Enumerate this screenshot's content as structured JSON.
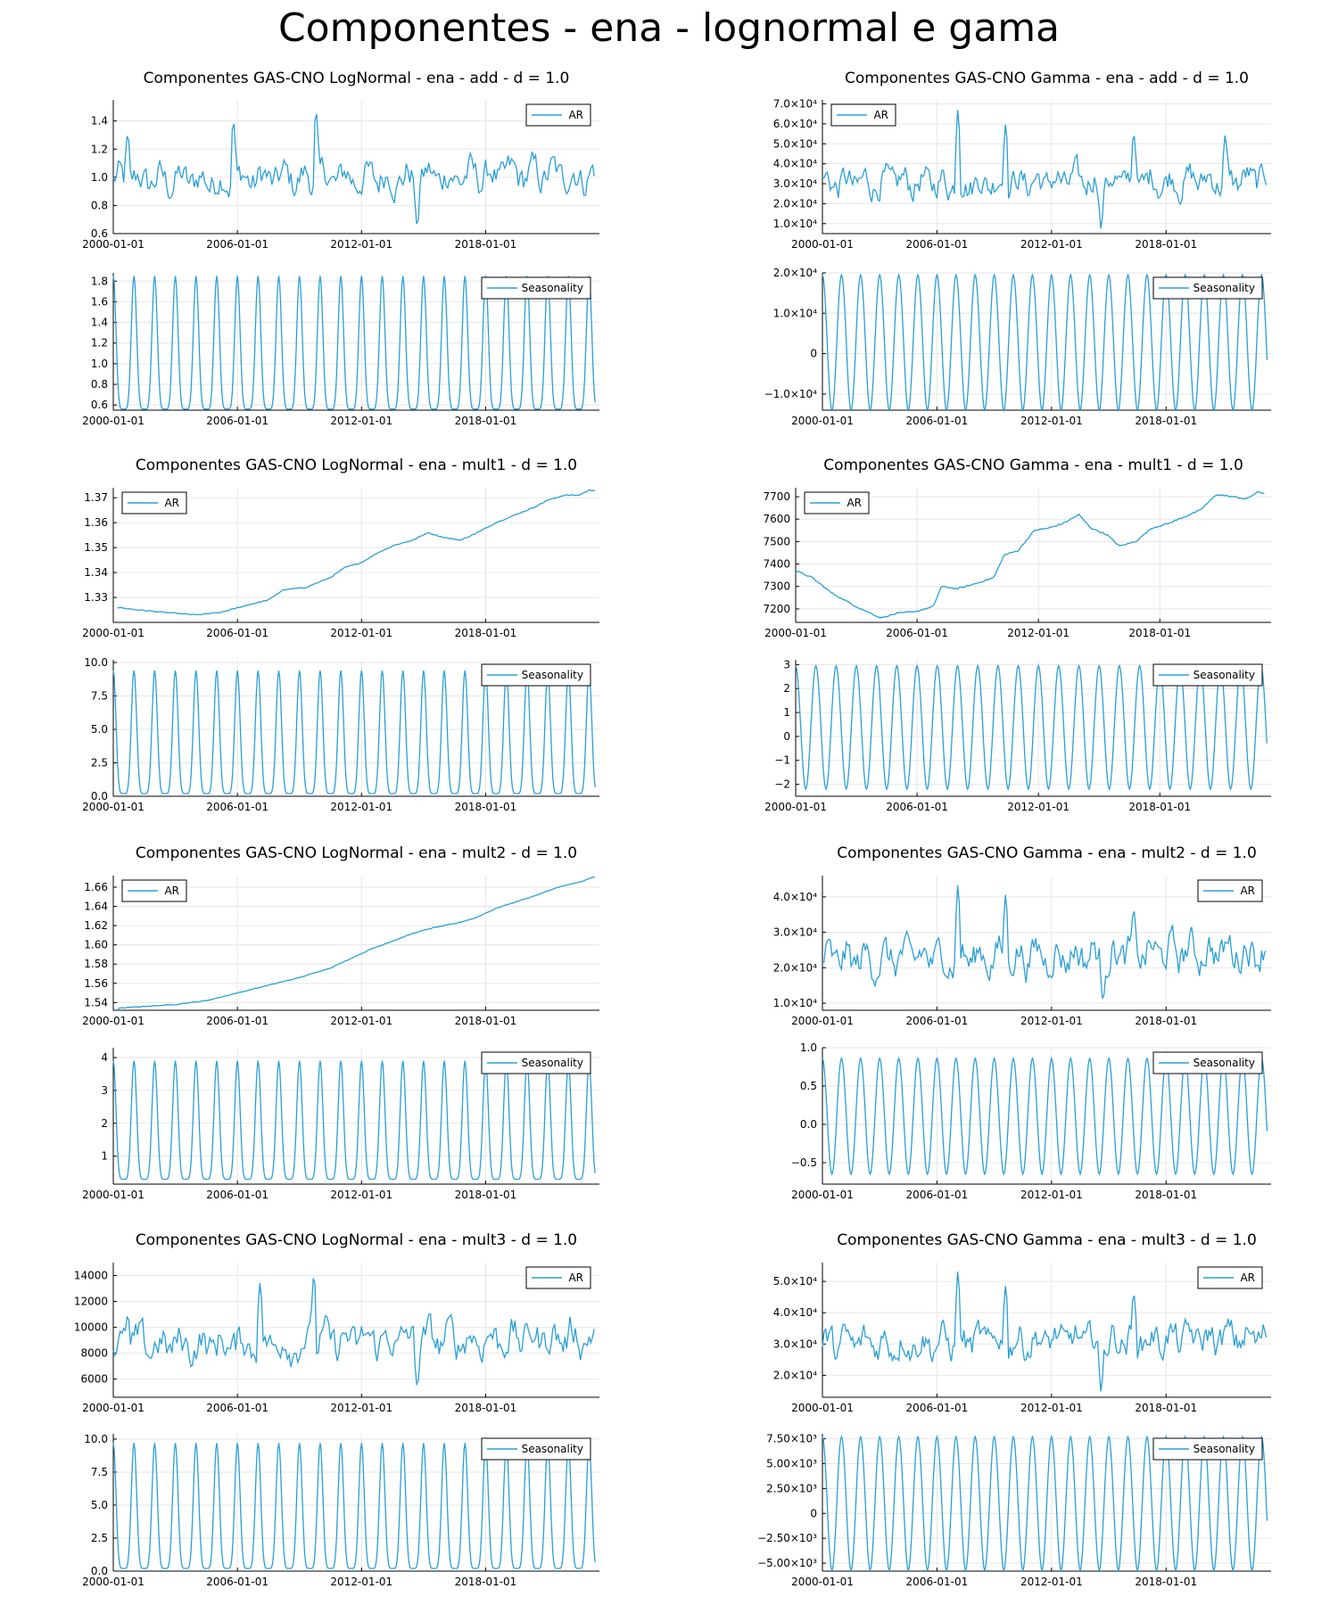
{
  "figure": {
    "title": "Componentes - ena - lognormal e gama",
    "line_color": "#2a9fd6"
  },
  "chart_data": [
    {
      "type": "line",
      "title": "Componentes GAS-CNO LogNormal - ena - add - d = 1.0",
      "legend": "AR",
      "legend_position": "top-right",
      "grid": true,
      "x_ticks": [
        "2000-01-01",
        "2006-01-01",
        "2012-01-01",
        "2018-01-01"
      ],
      "y_ticks": [
        "0.6",
        "0.8",
        "1.0",
        "1.2",
        "1.4"
      ],
      "y_tick_values": [
        0.6,
        0.8,
        1.0,
        1.2,
        1.4
      ],
      "xlim": [
        2000.0,
        2023.5
      ],
      "ylim": [
        0.6,
        1.55
      ],
      "pattern": "noisy",
      "level": [
        0.97,
        1.02
      ],
      "noise": 0.13,
      "spikes": [
        [
          2005.8,
          1.45
        ],
        [
          2009.8,
          1.53
        ],
        [
          2014.7,
          0.61
        ],
        [
          2000.7,
          1.35
        ]
      ]
    },
    {
      "type": "line",
      "title": "Componentes GAS-CNO Gamma - ena - add - d = 1.0",
      "legend": "AR",
      "legend_position": "top-left",
      "grid": true,
      "x_ticks": [
        "2000-01-01",
        "2006-01-01",
        "2012-01-01",
        "2018-01-01"
      ],
      "y_ticks": [
        "1.0×10⁴",
        "2.0×10⁴",
        "3.0×10⁴",
        "4.0×10⁴",
        "5.0×10⁴",
        "6.0×10⁴",
        "7.0×10⁴"
      ],
      "y_tick_values": [
        10000,
        20000,
        30000,
        40000,
        50000,
        60000,
        70000
      ],
      "xlim": [
        2000.0,
        2023.5
      ],
      "ylim": [
        5000,
        72000
      ],
      "pattern": "noisy",
      "level": [
        30000,
        32000
      ],
      "noise": 8000,
      "spikes": [
        [
          2007.1,
          70000
        ],
        [
          2009.6,
          62000
        ],
        [
          2014.6,
          5500
        ],
        [
          2016.3,
          58000
        ],
        [
          2021.1,
          56000
        ]
      ]
    },
    {
      "type": "line",
      "title": "",
      "legend": "Seasonality",
      "legend_position": "top-right",
      "grid": true,
      "x_ticks": [
        "2000-01-01",
        "2006-01-01",
        "2012-01-01",
        "2018-01-01"
      ],
      "y_ticks": [
        "0.6",
        "0.8",
        "1.0",
        "1.2",
        "1.4",
        "1.6",
        "1.8"
      ],
      "y_tick_values": [
        0.6,
        0.8,
        1.0,
        1.2,
        1.4,
        1.6,
        1.8
      ],
      "xlim": [
        2000.0,
        2023.5
      ],
      "ylim": [
        0.55,
        1.88
      ],
      "pattern": "seasonal",
      "season_min": 0.56,
      "season_max": 1.85,
      "sharp": "top"
    },
    {
      "type": "line",
      "title": "",
      "legend": "Seasonality",
      "legend_position": "top-right",
      "grid": true,
      "x_ticks": [
        "2000-01-01",
        "2006-01-01",
        "2012-01-01",
        "2018-01-01"
      ],
      "y_ticks": [
        "−1.0×10⁴",
        "0",
        "1.0×10⁴",
        "2.0×10⁴"
      ],
      "y_tick_values": [
        -10000,
        0,
        10000,
        20000
      ],
      "xlim": [
        2000.0,
        2023.5
      ],
      "ylim": [
        -14000,
        20000
      ],
      "pattern": "seasonal",
      "season_min": -14000,
      "season_max": 19500,
      "sharp": "none"
    },
    {
      "type": "line",
      "title": "Componentes GAS-CNO LogNormal - ena - mult1 - d = 1.0",
      "legend": "AR",
      "legend_position": "top-left",
      "grid": true,
      "x_ticks": [
        "2000-01-01",
        "2006-01-01",
        "2012-01-01",
        "2018-01-01"
      ],
      "y_ticks": [
        "1.33",
        "1.34",
        "1.35",
        "1.36",
        "1.37"
      ],
      "y_tick_values": [
        1.33,
        1.34,
        1.35,
        1.36,
        1.37
      ],
      "xlim": [
        2000.0,
        2023.5
      ],
      "ylim": [
        1.32,
        1.374
      ],
      "pattern": "trend",
      "points": [
        [
          2000.2,
          1.326
        ],
        [
          2001.2,
          1.325
        ],
        [
          2002.5,
          1.324
        ],
        [
          2004.0,
          1.323
        ],
        [
          2005.2,
          1.324
        ],
        [
          2006.5,
          1.327
        ],
        [
          2007.5,
          1.329
        ],
        [
          2008.2,
          1.333
        ],
        [
          2009.3,
          1.334
        ],
        [
          2010.5,
          1.338
        ],
        [
          2011.2,
          1.342
        ],
        [
          2012.0,
          1.344
        ],
        [
          2012.8,
          1.348
        ],
        [
          2013.6,
          1.351
        ],
        [
          2014.5,
          1.353
        ],
        [
          2015.2,
          1.356
        ],
        [
          2016.0,
          1.354
        ],
        [
          2016.8,
          1.353
        ],
        [
          2017.6,
          1.356
        ],
        [
          2018.5,
          1.36
        ],
        [
          2019.4,
          1.363
        ],
        [
          2020.3,
          1.366
        ],
        [
          2021.0,
          1.369
        ],
        [
          2021.8,
          1.371
        ],
        [
          2022.5,
          1.371
        ],
        [
          2023.0,
          1.373
        ],
        [
          2023.3,
          1.373
        ]
      ],
      "noise": 0.0004
    },
    {
      "type": "line",
      "title": "Componentes GAS-CNO Gamma - ena - mult1 - d = 1.0",
      "legend": "AR",
      "legend_position": "top-left",
      "grid": true,
      "x_ticks": [
        "2000-01-01",
        "2006-01-01",
        "2012-01-01",
        "2018-01-01"
      ],
      "y_ticks": [
        "7200",
        "7300",
        "7400",
        "7500",
        "7600",
        "7700"
      ],
      "y_tick_values": [
        7200,
        7300,
        7400,
        7500,
        7600,
        7700
      ],
      "xlim": [
        2000.0,
        2023.5
      ],
      "ylim": [
        7140,
        7740
      ],
      "pattern": "trend",
      "points": [
        [
          2000.0,
          7370
        ],
        [
          2000.8,
          7340
        ],
        [
          2001.8,
          7270
        ],
        [
          2003.0,
          7210
        ],
        [
          2004.2,
          7160
        ],
        [
          2005.0,
          7180
        ],
        [
          2006.0,
          7190
        ],
        [
          2006.8,
          7210
        ],
        [
          2007.2,
          7300
        ],
        [
          2008.0,
          7290
        ],
        [
          2008.8,
          7310
        ],
        [
          2009.8,
          7340
        ],
        [
          2010.3,
          7440
        ],
        [
          2011.0,
          7460
        ],
        [
          2011.8,
          7550
        ],
        [
          2012.5,
          7560
        ],
        [
          2013.2,
          7580
        ],
        [
          2014.0,
          7620
        ],
        [
          2014.6,
          7560
        ],
        [
          2015.4,
          7530
        ],
        [
          2016.0,
          7480
        ],
        [
          2016.8,
          7500
        ],
        [
          2017.6,
          7560
        ],
        [
          2018.4,
          7580
        ],
        [
          2019.2,
          7610
        ],
        [
          2020.0,
          7640
        ],
        [
          2020.8,
          7710
        ],
        [
          2021.6,
          7700
        ],
        [
          2022.3,
          7690
        ],
        [
          2022.8,
          7720
        ],
        [
          2023.2,
          7715
        ]
      ],
      "noise": 6
    },
    {
      "type": "line",
      "title": "",
      "legend": "Seasonality",
      "legend_position": "top-right",
      "grid": true,
      "x_ticks": [
        "2000-01-01",
        "2006-01-01",
        "2012-01-01",
        "2018-01-01"
      ],
      "y_ticks": [
        "0.0",
        "2.5",
        "5.0",
        "7.5",
        "10.0"
      ],
      "y_tick_values": [
        0,
        2.5,
        5,
        7.5,
        10
      ],
      "xlim": [
        2000.0,
        2023.5
      ],
      "ylim": [
        0,
        10.2
      ],
      "pattern": "seasonal",
      "season_min": 0.2,
      "season_max": 9.4,
      "sharp": "top"
    },
    {
      "type": "line",
      "title": "",
      "legend": "Seasonality",
      "legend_position": "top-right",
      "grid": true,
      "x_ticks": [
        "2000-01-01",
        "2006-01-01",
        "2012-01-01",
        "2018-01-01"
      ],
      "y_ticks": [
        "−2",
        "−1",
        "0",
        "1",
        "2",
        "3"
      ],
      "y_tick_values": [
        -2,
        -1,
        0,
        1,
        2,
        3
      ],
      "xlim": [
        2000.0,
        2023.5
      ],
      "ylim": [
        -2.5,
        3.2
      ],
      "pattern": "seasonal",
      "season_min": -2.2,
      "season_max": 2.95,
      "sharp": "none"
    },
    {
      "type": "line",
      "title": "Componentes GAS-CNO LogNormal - ena - mult2 - d = 1.0",
      "legend": "AR",
      "legend_position": "top-left",
      "grid": true,
      "x_ticks": [
        "2000-01-01",
        "2006-01-01",
        "2012-01-01",
        "2018-01-01"
      ],
      "y_ticks": [
        "1.54",
        "1.56",
        "1.58",
        "1.60",
        "1.62",
        "1.64",
        "1.66"
      ],
      "y_tick_values": [
        1.54,
        1.56,
        1.58,
        1.6,
        1.62,
        1.64,
        1.66
      ],
      "xlim": [
        2000.0,
        2023.5
      ],
      "ylim": [
        1.532,
        1.672
      ],
      "pattern": "trend",
      "points": [
        [
          2000.2,
          1.534
        ],
        [
          2001.5,
          1.536
        ],
        [
          2003.0,
          1.538
        ],
        [
          2004.5,
          1.542
        ],
        [
          2006.0,
          1.55
        ],
        [
          2007.5,
          1.558
        ],
        [
          2009.0,
          1.566
        ],
        [
          2010.5,
          1.576
        ],
        [
          2011.5,
          1.586
        ],
        [
          2012.5,
          1.596
        ],
        [
          2013.5,
          1.604
        ],
        [
          2014.5,
          1.612
        ],
        [
          2015.5,
          1.618
        ],
        [
          2016.5,
          1.622
        ],
        [
          2017.5,
          1.628
        ],
        [
          2018.5,
          1.638
        ],
        [
          2019.5,
          1.645
        ],
        [
          2020.5,
          1.652
        ],
        [
          2021.5,
          1.66
        ],
        [
          2022.5,
          1.665
        ],
        [
          2023.3,
          1.671
        ]
      ],
      "noise": 0.0007
    },
    {
      "type": "line",
      "title": "Componentes GAS-CNO Gamma - ena - mult2 - d = 1.0",
      "legend": "AR",
      "legend_position": "top-right",
      "grid": true,
      "x_ticks": [
        "2000-01-01",
        "2006-01-01",
        "2012-01-01",
        "2018-01-01"
      ],
      "y_ticks": [
        "1.0×10⁴",
        "2.0×10⁴",
        "3.0×10⁴",
        "4.0×10⁴"
      ],
      "y_tick_values": [
        10000,
        20000,
        30000,
        40000
      ],
      "xlim": [
        2000.0,
        2023.5
      ],
      "ylim": [
        8000,
        46000
      ],
      "pattern": "noisy",
      "level": [
        22000,
        25000
      ],
      "noise": 5500,
      "spikes": [
        [
          2007.1,
          45000
        ],
        [
          2009.6,
          42000
        ],
        [
          2014.7,
          9000
        ],
        [
          2016.3,
          38000
        ]
      ]
    },
    {
      "type": "line",
      "title": "",
      "legend": "Seasonality",
      "legend_position": "top-right",
      "grid": true,
      "x_ticks": [
        "2000-01-01",
        "2006-01-01",
        "2012-01-01",
        "2018-01-01"
      ],
      "y_ticks": [
        "1",
        "2",
        "3",
        "4"
      ],
      "y_tick_values": [
        1,
        2,
        3,
        4
      ],
      "xlim": [
        2000.0,
        2023.5
      ],
      "ylim": [
        0.15,
        4.3
      ],
      "pattern": "seasonal",
      "season_min": 0.3,
      "season_max": 3.9,
      "sharp": "top"
    },
    {
      "type": "line",
      "title": "",
      "legend": "Seasonality",
      "legend_position": "top-right",
      "grid": true,
      "x_ticks": [
        "2000-01-01",
        "2006-01-01",
        "2012-01-01",
        "2018-01-01"
      ],
      "y_ticks": [
        "−0.5",
        "0.0",
        "0.5",
        "1.0"
      ],
      "y_tick_values": [
        -0.5,
        0,
        0.5,
        1.0
      ],
      "xlim": [
        2000.0,
        2023.5
      ],
      "ylim": [
        -0.78,
        1.0
      ],
      "pattern": "seasonal",
      "season_min": -0.65,
      "season_max": 0.86,
      "sharp": "none"
    },
    {
      "type": "line",
      "title": "Componentes GAS-CNO LogNormal - ena - mult3 - d = 1.0",
      "legend": "AR",
      "legend_position": "top-right",
      "grid": true,
      "x_ticks": [
        "2000-01-01",
        "2006-01-01",
        "2012-01-01",
        "2018-01-01"
      ],
      "y_ticks": [
        "6000",
        "8000",
        "10000",
        "12000",
        "14000"
      ],
      "y_tick_values": [
        6000,
        8000,
        10000,
        12000,
        14000
      ],
      "xlim": [
        2000.0,
        2023.5
      ],
      "ylim": [
        4600,
        15000
      ],
      "pattern": "noisy",
      "level": [
        8500,
        9300
      ],
      "noise": 1500,
      "spikes": [
        [
          2007.1,
          13800
        ],
        [
          2009.7,
          14700
        ],
        [
          2014.7,
          5000
        ],
        [
          2000.7,
          11200
        ]
      ]
    },
    {
      "type": "line",
      "title": "Componentes GAS-CNO Gamma - ena - mult3 - d = 1.0",
      "legend": "AR",
      "legend_position": "top-right",
      "grid": true,
      "x_ticks": [
        "2000-01-01",
        "2006-01-01",
        "2012-01-01",
        "2018-01-01"
      ],
      "y_ticks": [
        "2.0×10⁴",
        "3.0×10⁴",
        "4.0×10⁴",
        "5.0×10⁴"
      ],
      "y_tick_values": [
        20000,
        30000,
        40000,
        50000
      ],
      "xlim": [
        2000.0,
        2023.5
      ],
      "ylim": [
        13000,
        56000
      ],
      "pattern": "noisy",
      "level": [
        30000,
        32000
      ],
      "noise": 5500,
      "spikes": [
        [
          2007.1,
          55000
        ],
        [
          2009.6,
          50000
        ],
        [
          2014.6,
          13500
        ],
        [
          2016.3,
          48000
        ]
      ]
    },
    {
      "type": "line",
      "title": "",
      "legend": "Seasonality",
      "legend_position": "top-right",
      "grid": true,
      "x_ticks": [
        "2000-01-01",
        "2006-01-01",
        "2012-01-01",
        "2018-01-01"
      ],
      "y_ticks": [
        "0.0",
        "2.5",
        "5.0",
        "7.5",
        "10.0"
      ],
      "y_tick_values": [
        0,
        2.5,
        5,
        7.5,
        10
      ],
      "xlim": [
        2000.0,
        2023.5
      ],
      "ylim": [
        0,
        10.4
      ],
      "pattern": "seasonal",
      "season_min": 0.2,
      "season_max": 9.7,
      "sharp": "top"
    },
    {
      "type": "line",
      "title": "",
      "legend": "Seasonality",
      "legend_position": "top-right",
      "grid": true,
      "x_ticks": [
        "2000-01-01",
        "2006-01-01",
        "2012-01-01",
        "2018-01-01"
      ],
      "y_ticks": [
        "−5.00×10³",
        "−2.50×10³",
        "0",
        "2.50×10³",
        "5.00×10³",
        "7.50×10³"
      ],
      "y_tick_values": [
        -5000,
        -2500,
        0,
        2500,
        5000,
        7500
      ],
      "xlim": [
        2000.0,
        2023.5
      ],
      "ylim": [
        -5800,
        8000
      ],
      "pattern": "seasonal",
      "season_min": -5700,
      "season_max": 7700,
      "sharp": "none"
    }
  ]
}
